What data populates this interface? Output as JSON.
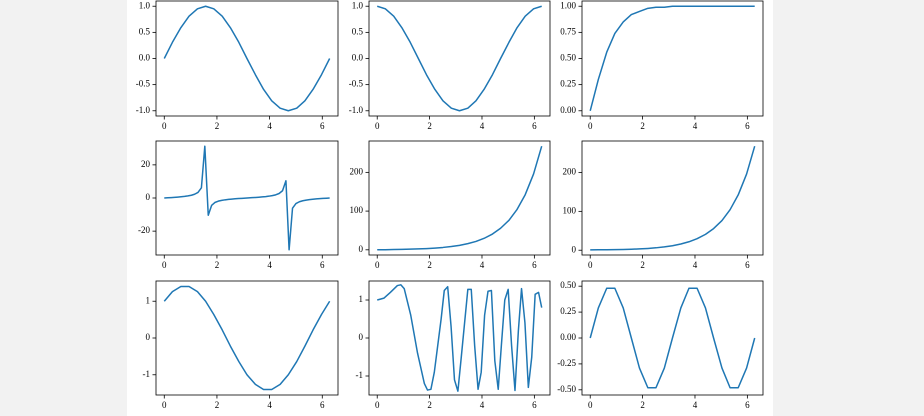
{
  "chart_data": [
    {
      "type": "line",
      "color": "#1f77b4",
      "x": [
        0,
        0.31,
        0.63,
        0.94,
        1.26,
        1.57,
        1.88,
        2.2,
        2.51,
        2.83,
        3.14,
        3.46,
        3.77,
        4.08,
        4.4,
        4.71,
        5.03,
        5.34,
        5.65,
        5.97,
        6.28
      ],
      "values": [
        0,
        0.31,
        0.59,
        0.81,
        0.95,
        1,
        0.95,
        0.81,
        0.59,
        0.31,
        0,
        -0.31,
        -0.59,
        -0.81,
        -0.95,
        -1,
        -0.95,
        -0.81,
        -0.59,
        -0.31,
        0
      ],
      "xlim": [
        -0.314,
        6.597
      ],
      "xticks": [
        0,
        2,
        4,
        6
      ],
      "ylim": [
        -1.1,
        1.1
      ],
      "yticks": [
        {
          "value": -1,
          "label": "-1.0"
        },
        -0.5,
        {
          "value": 0,
          "label": "0.0"
        },
        0.5,
        {
          "value": 1,
          "label": "1.0"
        }
      ]
    },
    {
      "type": "line",
      "color": "#1f77b4",
      "x": [
        0,
        0.31,
        0.63,
        0.94,
        1.26,
        1.57,
        1.88,
        2.2,
        2.51,
        2.83,
        3.14,
        3.46,
        3.77,
        4.08,
        4.4,
        4.71,
        5.03,
        5.34,
        5.65,
        5.97,
        6.28
      ],
      "values": [
        1,
        0.95,
        0.81,
        0.59,
        0.31,
        0,
        -0.31,
        -0.59,
        -0.81,
        -0.95,
        -1,
        -0.95,
        -0.81,
        -0.59,
        -0.31,
        0,
        0.31,
        0.59,
        0.81,
        0.95,
        1
      ],
      "xlim": [
        -0.314,
        6.597
      ],
      "xticks": [
        0,
        2,
        4,
        6
      ],
      "ylim": [
        -1.1,
        1.1
      ],
      "yticks": [
        {
          "value": -1,
          "label": "-1.0"
        },
        -0.5,
        {
          "value": 0,
          "label": "0.0"
        },
        0.5,
        {
          "value": 1,
          "label": "1.0"
        }
      ]
    },
    {
      "type": "line",
      "color": "#1f77b4",
      "x": [
        0,
        0.31,
        0.63,
        0.94,
        1.26,
        1.57,
        1.88,
        2.2,
        2.51,
        2.83,
        3.14,
        3.46,
        3.77,
        4.08,
        4.4,
        4.71,
        5.03,
        5.34,
        5.65,
        5.97,
        6.28
      ],
      "values": [
        0,
        0.3,
        0.56,
        0.74,
        0.85,
        0.92,
        0.95,
        0.98,
        0.99,
        0.99,
        1,
        1,
        1,
        1,
        1,
        1,
        1,
        1,
        1,
        1,
        1
      ],
      "xlim": [
        -0.314,
        6.597
      ],
      "xticks": [
        0,
        2,
        4,
        6
      ],
      "ylim": [
        -0.05,
        1.05
      ],
      "yticks": [
        {
          "value": 0,
          "label": "0.00"
        },
        0.25,
        {
          "value": 0.5,
          "label": "0.50"
        },
        0.75,
        {
          "value": 1,
          "label": "1.00"
        }
      ]
    },
    {
      "type": "line",
      "color": "#1f77b4",
      "x": [
        0,
        0.13,
        0.26,
        0.38,
        0.51,
        0.64,
        0.77,
        0.9,
        1.03,
        1.15,
        1.28,
        1.41,
        1.54,
        1.67,
        1.8,
        1.92,
        2.05,
        2.18,
        2.31,
        2.44,
        2.56,
        2.69,
        2.82,
        2.95,
        3.08,
        3.21,
        3.33,
        3.46,
        3.59,
        3.72,
        3.85,
        3.97,
        4.1,
        4.23,
        4.36,
        4.49,
        4.62,
        4.74,
        4.87,
        5.0,
        5.13,
        5.26,
        5.39,
        5.51,
        5.64,
        5.77,
        5.9,
        6.03,
        6.16,
        6.28
      ],
      "values": [
        0,
        0.129,
        0.262,
        0.405,
        0.564,
        0.747,
        0.968,
        1.256,
        1.65,
        2.26,
        3.37,
        6.18,
        31.25,
        -10.38,
        -4.38,
        -2.72,
        -1.91,
        -1.43,
        -1.1,
        -0.85,
        -0.651,
        -0.482,
        -0.332,
        -0.194,
        -0.064,
        0.064,
        0.194,
        0.332,
        0.482,
        0.651,
        0.85,
        1.1,
        1.43,
        1.91,
        2.72,
        4.38,
        10.38,
        -31.25,
        -6.18,
        -3.37,
        -2.26,
        -1.65,
        -1.256,
        -0.968,
        -0.747,
        -0.564,
        -0.405,
        -0.262,
        -0.129,
        0
      ],
      "xlim": [
        -0.314,
        6.597
      ],
      "xticks": [
        0,
        2,
        4,
        6
      ],
      "ylim": [
        -34.4,
        34.4
      ],
      "yticks": [
        -20,
        0,
        20
      ]
    },
    {
      "type": "line",
      "color": "#1f77b4",
      "x": [
        0,
        0.31,
        0.63,
        0.94,
        1.26,
        1.57,
        1.88,
        2.2,
        2.51,
        2.83,
        3.14,
        3.46,
        3.77,
        4.08,
        4.4,
        4.71,
        5.03,
        5.34,
        5.65,
        5.97,
        6.28
      ],
      "values": [
        0,
        0.32,
        0.67,
        1.09,
        1.62,
        2.3,
        3.2,
        4.46,
        6.13,
        8.44,
        11.55,
        15.89,
        21.68,
        29.57,
        40.72,
        55.65,
        76.24,
        104.3,
        142.3,
        195.9,
        267.7
      ],
      "xlim": [
        -0.314,
        6.597
      ],
      "xticks": [
        0,
        2,
        4,
        6
      ],
      "ylim": [
        -13.4,
        281
      ],
      "yticks": [
        0,
        100,
        200
      ]
    },
    {
      "type": "line",
      "color": "#1f77b4",
      "x": [
        0,
        0.31,
        0.63,
        0.94,
        1.26,
        1.57,
        1.88,
        2.2,
        2.51,
        2.83,
        3.14,
        3.46,
        3.77,
        4.08,
        4.4,
        4.71,
        5.03,
        5.34,
        5.65,
        5.97,
        6.28
      ],
      "values": [
        1,
        1.05,
        1.2,
        1.47,
        1.9,
        2.51,
        3.35,
        4.57,
        6.21,
        8.5,
        11.59,
        15.92,
        21.71,
        29.59,
        40.73,
        55.66,
        76.25,
        104.3,
        142.3,
        195.9,
        267.7
      ],
      "xlim": [
        -0.314,
        6.597
      ],
      "xticks": [
        0,
        2,
        4,
        6
      ],
      "ylim": [
        -12.3,
        281
      ],
      "yticks": [
        0,
        100,
        200
      ]
    },
    {
      "type": "line",
      "color": "#1f77b4",
      "x": [
        0,
        0.31,
        0.63,
        0.94,
        1.26,
        1.57,
        1.88,
        2.2,
        2.51,
        2.83,
        3.14,
        3.46,
        3.77,
        4.08,
        4.4,
        4.71,
        5.03,
        5.34,
        5.65,
        5.97,
        6.28
      ],
      "values": [
        1,
        1.26,
        1.4,
        1.4,
        1.26,
        1,
        0.64,
        0.22,
        -0.22,
        -0.64,
        -1,
        -1.26,
        -1.4,
        -1.4,
        -1.26,
        -1,
        -0.64,
        -0.22,
        0.22,
        0.64,
        1
      ],
      "xlim": [
        -0.314,
        6.597
      ],
      "xticks": [
        0,
        2,
        4,
        6
      ],
      "ylim": [
        -1.55,
        1.55
      ],
      "yticks": [
        -1,
        0,
        1
      ]
    },
    {
      "type": "line",
      "color": "#1f77b4",
      "x": [
        0,
        0.26,
        0.5,
        0.77,
        0.9,
        1.03,
        1.28,
        1.54,
        1.8,
        1.92,
        2.05,
        2.18,
        2.44,
        2.56,
        2.69,
        2.82,
        2.95,
        3.08,
        3.21,
        3.46,
        3.59,
        3.72,
        3.85,
        3.97,
        4.1,
        4.23,
        4.36,
        4.49,
        4.62,
        4.74,
        4.87,
        5.0,
        5.13,
        5.26,
        5.39,
        5.51,
        5.64,
        5.77,
        5.9,
        6.03,
        6.16,
        6.28
      ],
      "values": [
        1,
        1.05,
        1.2,
        1.38,
        1.4,
        1.3,
        0.6,
        -0.4,
        -1.2,
        -1.37,
        -1.35,
        -0.9,
        0.5,
        1.25,
        1.35,
        0.3,
        -1.1,
        -1.4,
        -0.5,
        1.28,
        1.28,
        -0.2,
        -1.35,
        -0.9,
        0.6,
        1.23,
        1.25,
        -0.6,
        -1.35,
        -0.2,
        1,
        1.28,
        -0.2,
        -1.38,
        0.2,
        1.3,
        0.4,
        -1.3,
        -0.5,
        1.15,
        1.2,
        0.8
      ],
      "xlim": [
        -0.314,
        6.597
      ],
      "xticks": [
        0,
        2,
        4,
        6
      ],
      "ylim": [
        -1.5,
        1.5
      ],
      "yticks": [
        -1,
        0,
        1
      ]
    },
    {
      "type": "line",
      "color": "#1f77b4",
      "x": [
        0,
        0.31,
        0.63,
        0.94,
        1.26,
        1.57,
        1.88,
        2.2,
        2.51,
        2.83,
        3.14,
        3.46,
        3.77,
        4.08,
        4.4,
        4.71,
        5.03,
        5.34,
        5.65,
        5.97,
        6.28
      ],
      "values": [
        0,
        0.29,
        0.48,
        0.48,
        0.29,
        0,
        -0.29,
        -0.48,
        -0.48,
        -0.29,
        0,
        0.29,
        0.48,
        0.48,
        0.29,
        0,
        -0.29,
        -0.48,
        -0.48,
        -0.29,
        0
      ],
      "xlim": [
        -0.314,
        6.597
      ],
      "xticks": [
        0,
        2,
        4,
        6
      ],
      "ylim": [
        -0.55,
        0.55
      ],
      "yticks": [
        {
          "value": -0.5,
          "label": "-0.50"
        },
        -0.25,
        {
          "value": 0,
          "label": "0.00"
        },
        0.25,
        {
          "value": 0.5,
          "label": "0.50"
        }
      ]
    }
  ]
}
